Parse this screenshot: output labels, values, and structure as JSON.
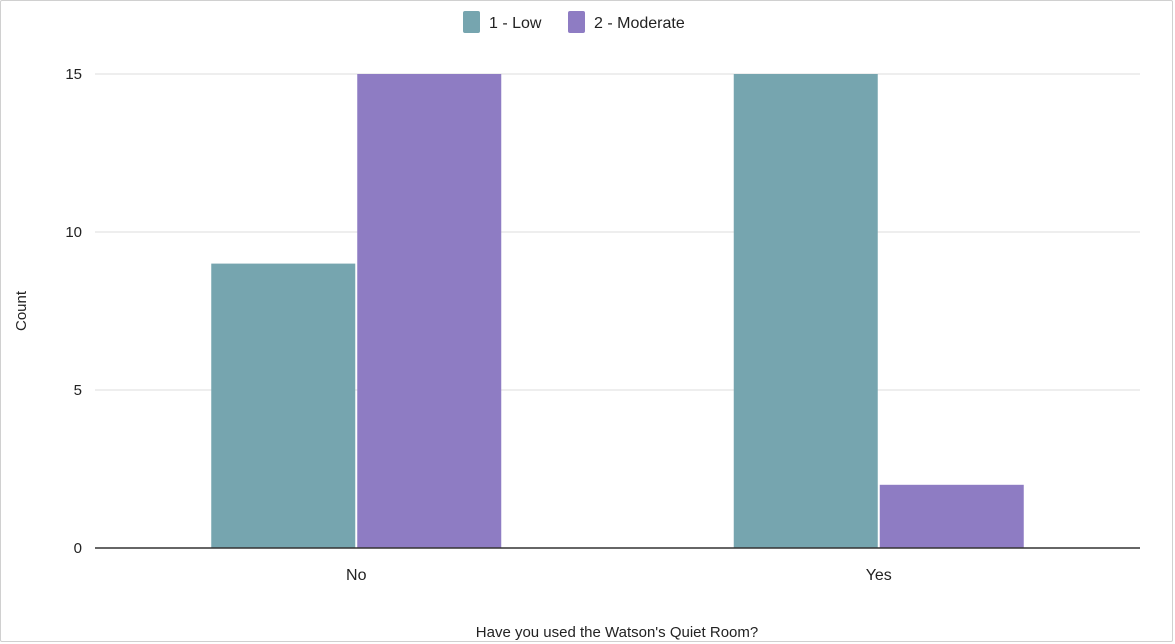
{
  "chart_data": {
    "type": "bar",
    "title": "",
    "xlabel": "Have you used the Watson's Quiet Room?",
    "ylabel": "Count",
    "categories": [
      "No",
      "Yes"
    ],
    "series": [
      {
        "name": "1 - Low",
        "values": [
          9,
          15
        ],
        "color": "#76a5af"
      },
      {
        "name": "2 - Moderate",
        "values": [
          15,
          2
        ],
        "color": "#8e7cc3"
      }
    ],
    "ylim": [
      0,
      15
    ],
    "yticks": [
      0,
      5,
      10,
      15
    ],
    "grid": true,
    "legend_position": "top-center"
  }
}
